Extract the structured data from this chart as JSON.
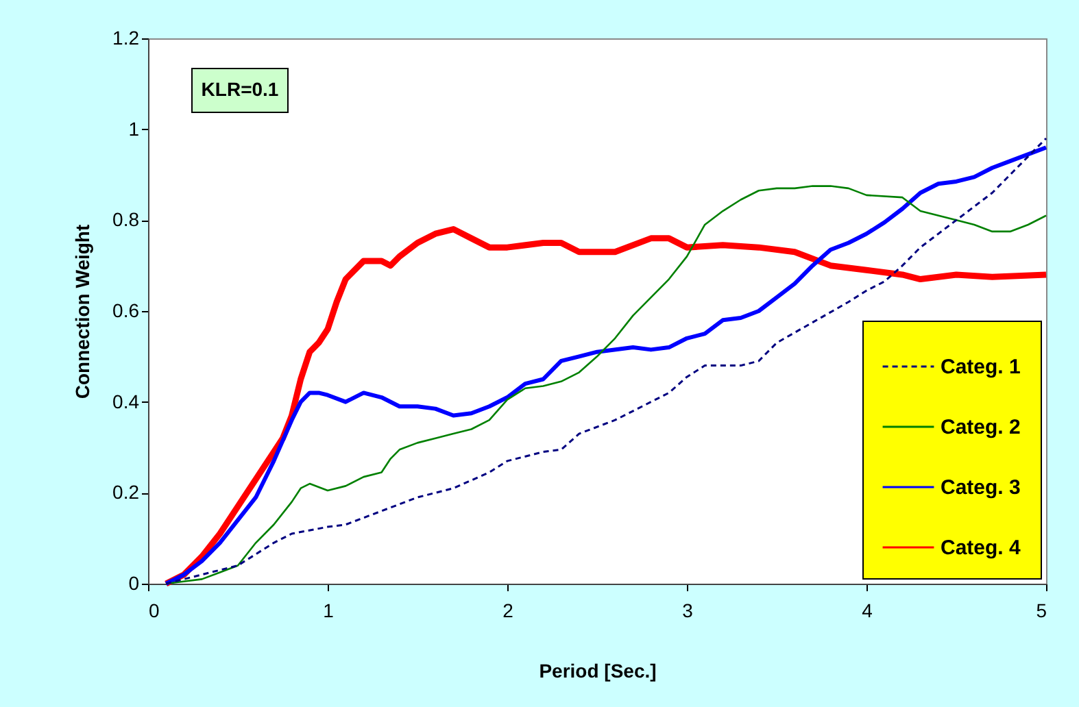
{
  "chart_data": {
    "type": "line",
    "xlabel": "Period [Sec.]",
    "ylabel": "Connection Weight",
    "xlim": [
      0,
      5
    ],
    "xticks": [
      0,
      1,
      2,
      3,
      4,
      5
    ],
    "ylim": [
      0,
      1.2
    ],
    "yticks": [
      0,
      0.2,
      0.4,
      0.6,
      0.8,
      1,
      1.2
    ],
    "grid": false,
    "legend": "bottom right",
    "marker": "none",
    "annotations": [
      "KLR=0.1"
    ],
    "series": [
      {
        "name": "Categ. 1",
        "color": "#000080",
        "line_style": "dashed",
        "x": [
          0.1,
          0.3,
          0.5,
          0.7,
          0.8,
          1.0,
          1.1,
          1.3,
          1.5,
          1.7,
          1.9,
          2.0,
          2.2,
          2.3,
          2.4,
          2.6,
          2.8,
          2.9,
          3.0,
          3.1,
          3.3,
          3.4,
          3.5,
          3.7,
          3.9,
          4.0,
          4.1,
          4.2,
          4.3,
          4.5,
          4.7,
          4.8,
          5.0
        ],
        "values": [
          0,
          0.02,
          0.04,
          0.09,
          0.11,
          0.125,
          0.13,
          0.16,
          0.19,
          0.21,
          0.245,
          0.27,
          0.29,
          0.295,
          0.33,
          0.36,
          0.4,
          0.42,
          0.455,
          0.48,
          0.48,
          0.49,
          0.53,
          0.575,
          0.62,
          0.645,
          0.665,
          0.7,
          0.74,
          0.8,
          0.86,
          0.9,
          0.98
        ]
      },
      {
        "name": "Categ. 2",
        "color": "#008000",
        "line_style": "solid",
        "x": [
          0.1,
          0.3,
          0.4,
          0.5,
          0.6,
          0.7,
          0.8,
          0.85,
          0.9,
          1.0,
          1.1,
          1.2,
          1.3,
          1.35,
          1.4,
          1.5,
          1.6,
          1.7,
          1.8,
          1.9,
          2.0,
          2.1,
          2.2,
          2.3,
          2.4,
          2.5,
          2.6,
          2.7,
          2.8,
          2.9,
          3.0,
          3.1,
          3.2,
          3.3,
          3.4,
          3.5,
          3.6,
          3.7,
          3.8,
          3.9,
          4.0,
          4.2,
          4.3,
          4.5,
          4.6,
          4.7,
          4.8,
          4.9,
          5.0
        ],
        "values": [
          0,
          0.01,
          0.025,
          0.04,
          0.09,
          0.13,
          0.18,
          0.21,
          0.22,
          0.205,
          0.215,
          0.235,
          0.245,
          0.275,
          0.295,
          0.31,
          0.32,
          0.33,
          0.34,
          0.36,
          0.405,
          0.43,
          0.435,
          0.445,
          0.465,
          0.5,
          0.54,
          0.59,
          0.63,
          0.67,
          0.72,
          0.79,
          0.82,
          0.845,
          0.865,
          0.87,
          0.87,
          0.875,
          0.875,
          0.87,
          0.855,
          0.85,
          0.82,
          0.8,
          0.79,
          0.775,
          0.775,
          0.79,
          0.81
        ]
      },
      {
        "name": "Categ. 3",
        "color": "#0000ff",
        "line_style": "solid",
        "x": [
          0.1,
          0.2,
          0.3,
          0.4,
          0.5,
          0.6,
          0.7,
          0.8,
          0.85,
          0.9,
          0.95,
          1.0,
          1.1,
          1.2,
          1.3,
          1.4,
          1.5,
          1.6,
          1.7,
          1.8,
          1.9,
          2.0,
          2.1,
          2.2,
          2.3,
          2.4,
          2.5,
          2.7,
          2.8,
          2.9,
          3.0,
          3.1,
          3.2,
          3.3,
          3.4,
          3.5,
          3.6,
          3.7,
          3.8,
          3.9,
          4.0,
          4.1,
          4.2,
          4.3,
          4.4,
          4.5,
          4.6,
          4.7,
          4.8,
          5.0
        ],
        "values": [
          0,
          0.02,
          0.05,
          0.09,
          0.14,
          0.19,
          0.27,
          0.36,
          0.4,
          0.42,
          0.42,
          0.415,
          0.4,
          0.42,
          0.41,
          0.39,
          0.39,
          0.385,
          0.37,
          0.375,
          0.39,
          0.41,
          0.44,
          0.45,
          0.49,
          0.5,
          0.51,
          0.52,
          0.515,
          0.52,
          0.54,
          0.55,
          0.58,
          0.585,
          0.6,
          0.63,
          0.66,
          0.7,
          0.735,
          0.75,
          0.77,
          0.795,
          0.825,
          0.86,
          0.88,
          0.885,
          0.895,
          0.915,
          0.93,
          0.96
        ]
      },
      {
        "name": "Categ. 4",
        "color": "#ff0000",
        "line_style": "solid",
        "x": [
          0.1,
          0.2,
          0.3,
          0.4,
          0.5,
          0.6,
          0.7,
          0.75,
          0.8,
          0.85,
          0.9,
          0.95,
          1.0,
          1.05,
          1.1,
          1.2,
          1.3,
          1.35,
          1.4,
          1.5,
          1.6,
          1.7,
          1.8,
          1.9,
          2.0,
          2.2,
          2.3,
          2.4,
          2.6,
          2.8,
          2.9,
          3.0,
          3.2,
          3.4,
          3.6,
          3.8,
          4.0,
          4.2,
          4.3,
          4.5,
          4.7,
          5.0
        ],
        "values": [
          0,
          0.02,
          0.06,
          0.11,
          0.17,
          0.23,
          0.29,
          0.32,
          0.37,
          0.45,
          0.51,
          0.53,
          0.56,
          0.62,
          0.67,
          0.71,
          0.71,
          0.7,
          0.72,
          0.75,
          0.77,
          0.78,
          0.76,
          0.74,
          0.74,
          0.75,
          0.75,
          0.73,
          0.73,
          0.76,
          0.76,
          0.74,
          0.745,
          0.74,
          0.73,
          0.7,
          0.69,
          0.68,
          0.67,
          0.68,
          0.675,
          0.68
        ]
      }
    ]
  }
}
